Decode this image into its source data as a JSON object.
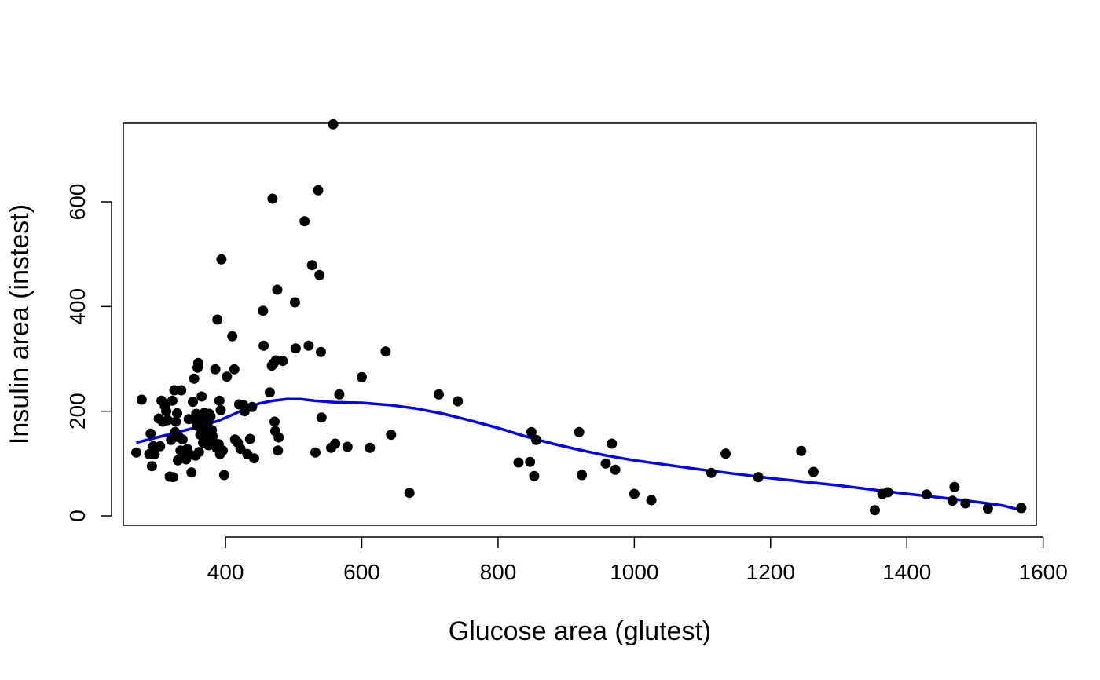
{
  "chart_data": {
    "type": "scatter",
    "title": "",
    "xlabel": "Glucose area (glutest)",
    "ylabel": "Insulin area (instest)",
    "xlim": [
      250,
      1590
    ],
    "ylim": [
      -18,
      750
    ],
    "x_ticks": [
      "400",
      "600",
      "800",
      "1000",
      "1200",
      "1400",
      "1600"
    ],
    "y_ticks": [
      "0",
      "200",
      "400",
      "600"
    ],
    "grid": false,
    "legend": "none",
    "point_color": "#000000",
    "smooth_color": "#0000ff",
    "series": [
      {
        "kind": "points",
        "points": [
          [
            269,
            121
          ],
          [
            277,
            222
          ],
          [
            288,
            118
          ],
          [
            290,
            157
          ],
          [
            292,
            95
          ],
          [
            294,
            133
          ],
          [
            296,
            118
          ],
          [
            302,
            186
          ],
          [
            304,
            133
          ],
          [
            306,
            220
          ],
          [
            308,
            180
          ],
          [
            311,
            210
          ],
          [
            313,
            200
          ],
          [
            315,
            183
          ],
          [
            318,
            75
          ],
          [
            320,
            145
          ],
          [
            322,
            220
          ],
          [
            323,
            74
          ],
          [
            325,
            240
          ],
          [
            326,
            160
          ],
          [
            327,
            180
          ],
          [
            329,
            196
          ],
          [
            330,
            106
          ],
          [
            332,
            150
          ],
          [
            334,
            125
          ],
          [
            335,
            240
          ],
          [
            337,
            146
          ],
          [
            340,
            120
          ],
          [
            342,
            108
          ],
          [
            344,
            128
          ],
          [
            346,
            185
          ],
          [
            348,
            117
          ],
          [
            350,
            83
          ],
          [
            352,
            218
          ],
          [
            354,
            262
          ],
          [
            355,
            183
          ],
          [
            356,
            115
          ],
          [
            357,
            195
          ],
          [
            358,
            172
          ],
          [
            359,
            283
          ],
          [
            360,
            292
          ],
          [
            361,
            122
          ],
          [
            362,
            188
          ],
          [
            363,
            155
          ],
          [
            364,
            192
          ],
          [
            365,
            228
          ],
          [
            366,
            185
          ],
          [
            367,
            140
          ],
          [
            368,
            178
          ],
          [
            369,
            197
          ],
          [
            370,
            163
          ],
          [
            371,
            190
          ],
          [
            372,
            158
          ],
          [
            374,
            178
          ],
          [
            375,
            135
          ],
          [
            376,
            195
          ],
          [
            377,
            144
          ],
          [
            378,
            190
          ],
          [
            380,
            164
          ],
          [
            381,
            152
          ],
          [
            383,
            140
          ],
          [
            385,
            280
          ],
          [
            387,
            130
          ],
          [
            388,
            375
          ],
          [
            390,
            137
          ],
          [
            391,
            220
          ],
          [
            392,
            118
          ],
          [
            393,
            202
          ],
          [
            394,
            490
          ],
          [
            396,
            125
          ],
          [
            398,
            78
          ],
          [
            402,
            266
          ],
          [
            410,
            343
          ],
          [
            413,
            280
          ],
          [
            414,
            146
          ],
          [
            418,
            140
          ],
          [
            420,
            213
          ],
          [
            422,
            128
          ],
          [
            426,
            212
          ],
          [
            428,
            200
          ],
          [
            432,
            118
          ],
          [
            436,
            147
          ],
          [
            439,
            208
          ],
          [
            442,
            110
          ],
          [
            455,
            392
          ],
          [
            456,
            325
          ],
          [
            465,
            236
          ],
          [
            468,
            287
          ],
          [
            469,
            606
          ],
          [
            471,
            292
          ],
          [
            472,
            180
          ],
          [
            473,
            162
          ],
          [
            474,
            297
          ],
          [
            476,
            432
          ],
          [
            477,
            125
          ],
          [
            478,
            150
          ],
          [
            484,
            296
          ],
          [
            502,
            408
          ],
          [
            503,
            320
          ],
          [
            516,
            563
          ],
          [
            522,
            325
          ],
          [
            527,
            479
          ],
          [
            532,
            121
          ],
          [
            536,
            622
          ],
          [
            538,
            460
          ],
          [
            540,
            313
          ],
          [
            541,
            188
          ],
          [
            555,
            130
          ],
          [
            558,
            748
          ],
          [
            561,
            138
          ],
          [
            567,
            232
          ],
          [
            579,
            132
          ],
          [
            600,
            265
          ],
          [
            612,
            130
          ],
          [
            635,
            314
          ],
          [
            643,
            155
          ],
          [
            670,
            44
          ],
          [
            713,
            232
          ],
          [
            741,
            219
          ],
          [
            830,
            102
          ],
          [
            847,
            103
          ],
          [
            849,
            160
          ],
          [
            853,
            76
          ],
          [
            856,
            145
          ],
          [
            919,
            160
          ],
          [
            923,
            78
          ],
          [
            958,
            100
          ],
          [
            967,
            138
          ],
          [
            972,
            88
          ],
          [
            1000,
            42
          ],
          [
            1025,
            30
          ],
          [
            1113,
            82
          ],
          [
            1134,
            119
          ],
          [
            1182,
            74
          ],
          [
            1245,
            124
          ],
          [
            1263,
            84
          ],
          [
            1353,
            11
          ],
          [
            1364,
            42
          ],
          [
            1372,
            45
          ],
          [
            1429,
            41
          ],
          [
            1467,
            29
          ],
          [
            1470,
            55
          ],
          [
            1486,
            24
          ],
          [
            1519,
            14
          ],
          [
            1568,
            15
          ]
        ]
      },
      {
        "kind": "smooth_line",
        "points": [
          [
            269,
            140
          ],
          [
            300,
            150
          ],
          [
            330,
            160
          ],
          [
            360,
            170
          ],
          [
            390,
            182
          ],
          [
            410,
            193
          ],
          [
            430,
            205
          ],
          [
            450,
            215
          ],
          [
            470,
            220
          ],
          [
            490,
            223
          ],
          [
            510,
            223
          ],
          [
            530,
            220
          ],
          [
            560,
            217
          ],
          [
            600,
            216
          ],
          [
            640,
            212
          ],
          [
            680,
            205
          ],
          [
            720,
            195
          ],
          [
            760,
            182
          ],
          [
            800,
            168
          ],
          [
            840,
            152
          ],
          [
            880,
            138
          ],
          [
            920,
            126
          ],
          [
            960,
            115
          ],
          [
            1000,
            106
          ],
          [
            1050,
            97
          ],
          [
            1100,
            88
          ],
          [
            1150,
            80
          ],
          [
            1200,
            72
          ],
          [
            1250,
            65
          ],
          [
            1300,
            58
          ],
          [
            1350,
            50
          ],
          [
            1400,
            42
          ],
          [
            1450,
            35
          ],
          [
            1500,
            27
          ],
          [
            1540,
            20
          ],
          [
            1568,
            11
          ]
        ]
      }
    ]
  }
}
